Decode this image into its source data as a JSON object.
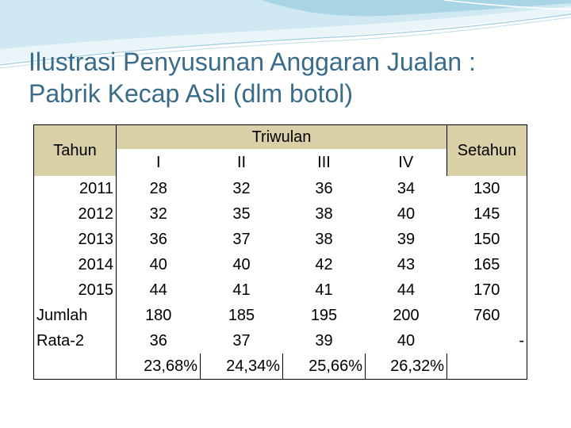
{
  "title_line1": "Ilustrasi Penyusunan Anggaran Jualan :",
  "title_line2": "Pabrik Kecap Asli (dlm botol)",
  "header": {
    "tahun": "Tahun",
    "triwulan": "Triwulan",
    "setahun": "Setahun",
    "quarters": [
      "I",
      "II",
      "III",
      "IV"
    ]
  },
  "rows": [
    {
      "label": "2011",
      "q": [
        "28",
        "32",
        "36",
        "34"
      ],
      "total": "130"
    },
    {
      "label": "2012",
      "q": [
        "32",
        "35",
        "38",
        "40"
      ],
      "total": "145"
    },
    {
      "label": "2013",
      "q": [
        "36",
        "37",
        "38",
        "39"
      ],
      "total": "150"
    },
    {
      "label": "2014",
      "q": [
        "40",
        "40",
        "42",
        "43"
      ],
      "total": "165"
    },
    {
      "label": "2015",
      "q": [
        "44",
        "41",
        "41",
        "44"
      ],
      "total": "170"
    },
    {
      "label": "Jumlah",
      "q": [
        "180",
        "185",
        "195",
        "200"
      ],
      "total": "760"
    },
    {
      "label": "Rata-2",
      "q": [
        "36",
        "37",
        "39",
        "40"
      ],
      "total": "-"
    },
    {
      "label": "",
      "q": [
        "23,68%",
        "24,34%",
        "25,66%",
        "26,32%"
      ],
      "total": ""
    }
  ],
  "colors": {
    "title": "#3a6c8a",
    "header_fill": "#d9d0a8",
    "wave_light": "#dbeef5",
    "wave_mid": "#a8d4e6",
    "wave_dark": "#6fb3cf"
  }
}
